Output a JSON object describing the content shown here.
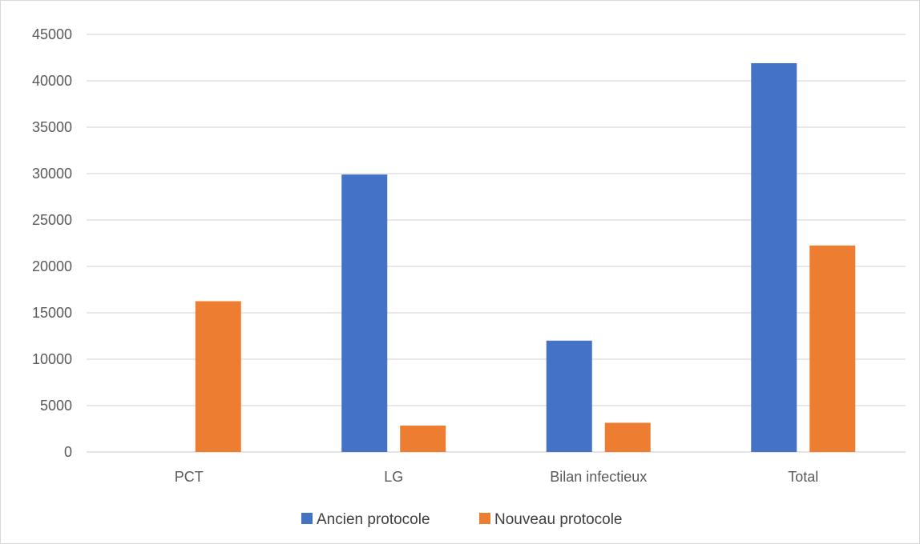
{
  "chart_data": {
    "type": "bar",
    "title": "",
    "xlabel": "",
    "ylabel": "",
    "categories": [
      "PCT",
      "LG",
      "Bilan infectieux",
      "Total"
    ],
    "series": [
      {
        "name": "Ancien protocole",
        "color": "#4472C4",
        "values": [
          0,
          29900,
          12000,
          41900
        ]
      },
      {
        "name": "Nouveau protocole",
        "color": "#ED7D31",
        "values": [
          16250,
          2850,
          3150,
          22250
        ]
      }
    ],
    "ylim": [
      0,
      45000
    ],
    "yticks": [
      0,
      5000,
      10000,
      15000,
      20000,
      25000,
      30000,
      35000,
      40000,
      45000
    ],
    "grid": true,
    "gridline_color": "#d9d9d9",
    "legend_position": "bottom"
  }
}
